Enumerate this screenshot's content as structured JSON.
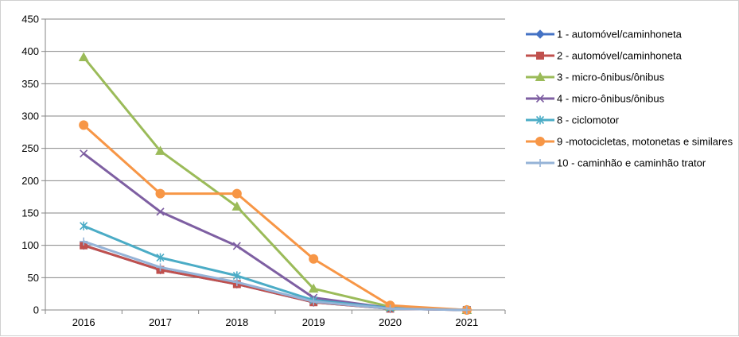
{
  "chart_data": {
    "type": "line",
    "title": "",
    "xlabel": "",
    "ylabel": "",
    "categories": [
      "2016",
      "2017",
      "2018",
      "2019",
      "2020",
      "2021"
    ],
    "ylim": [
      0,
      450
    ],
    "yticks": [
      "0",
      "50",
      "100",
      "150",
      "200",
      "250",
      "300",
      "350",
      "400",
      "450"
    ],
    "grid": "horizontal",
    "legend_position": "right",
    "series": [
      {
        "name": "1 - automóvel/caminhoneta",
        "color": "#4472C4",
        "marker": "diamond",
        "values": [
          100,
          62,
          40,
          12,
          2,
          0
        ]
      },
      {
        "name": "2 - automóvel/caminhoneta",
        "color": "#C0504D",
        "marker": "square",
        "values": [
          100,
          62,
          40,
          12,
          2,
          0
        ]
      },
      {
        "name": "3 - micro-ônibus/ônibus",
        "color": "#9BBB59",
        "marker": "triangle",
        "values": [
          391,
          246,
          160,
          33,
          5,
          0
        ]
      },
      {
        "name": "4 - micro-ônibus/ônibus",
        "color": "#7E5FA2",
        "marker": "x",
        "values": [
          242,
          152,
          99,
          19,
          3,
          0
        ]
      },
      {
        "name": "8 - ciclomotor",
        "color": "#4BACC6",
        "marker": "star",
        "values": [
          130,
          81,
          53,
          15,
          3,
          0
        ]
      },
      {
        "name": "9 -motocicletas, motonetas e similares",
        "color": "#F79646",
        "marker": "circle",
        "values": [
          286,
          180,
          180,
          79,
          7,
          0
        ]
      },
      {
        "name": "10 - caminhão e caminhão trator",
        "color": "#95B3D7",
        "marker": "plus",
        "values": [
          106,
          66,
          43,
          13,
          2,
          0
        ]
      }
    ]
  }
}
